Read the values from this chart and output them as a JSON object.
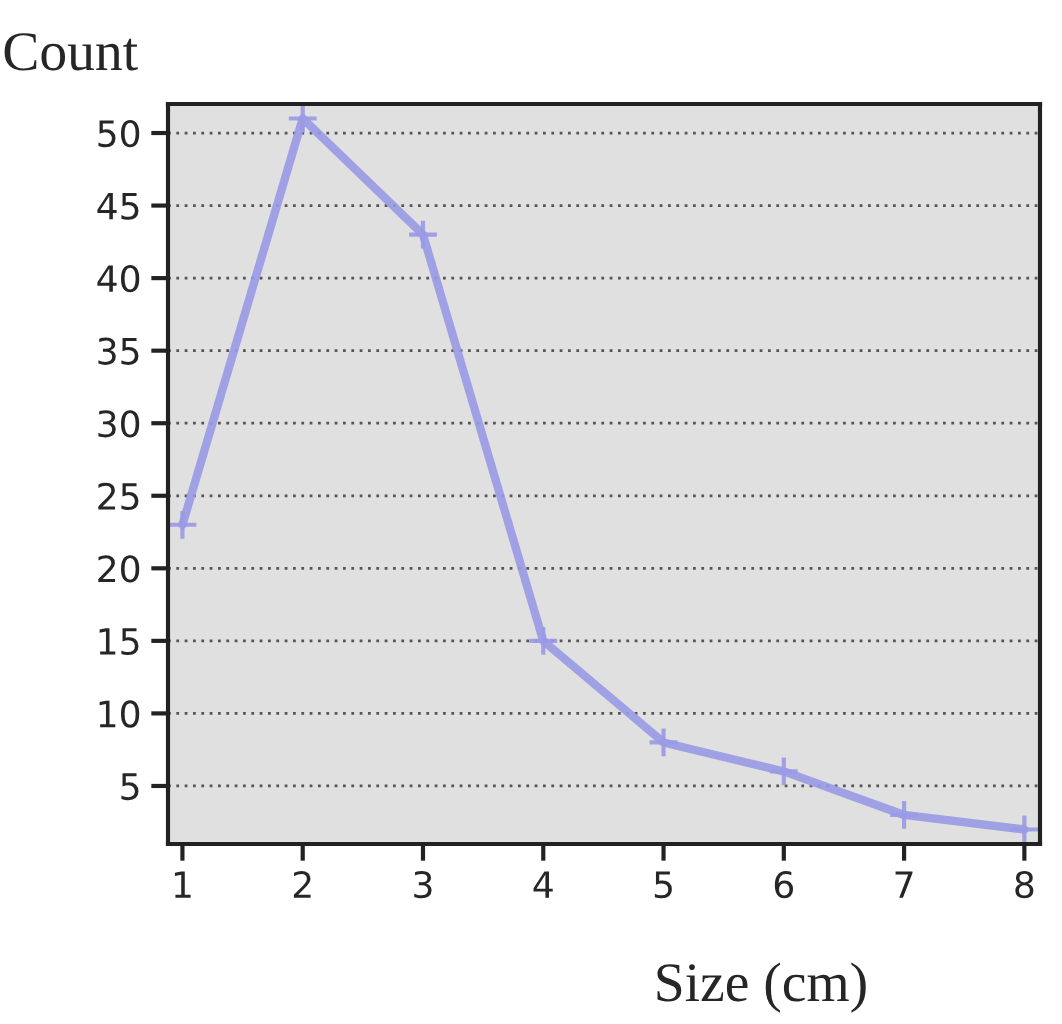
{
  "chart_data": {
    "type": "line",
    "xlabel": "Size (cm)",
    "ylabel": "Count",
    "x": [
      1,
      2,
      3,
      4,
      5,
      6,
      7,
      8
    ],
    "series": [
      {
        "color": "#9999e6",
        "values": [
          23,
          51,
          43,
          15,
          8,
          6,
          3,
          2
        ]
      }
    ],
    "xlim": [
      0.88,
      8.13
    ],
    "ylim": [
      1,
      52
    ],
    "xticks": [
      1,
      2,
      3,
      4,
      5,
      6,
      7,
      8
    ],
    "yticks": [
      5,
      10,
      15,
      20,
      25,
      30,
      35,
      40,
      45,
      50
    ],
    "grid": "y",
    "marker": "cross",
    "line_style": "solid"
  }
}
